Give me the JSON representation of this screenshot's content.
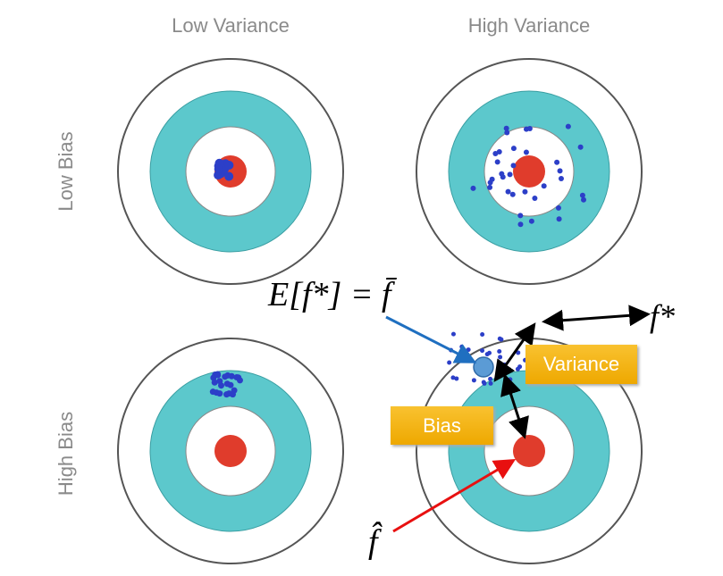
{
  "columns": [
    "Low Variance",
    "High Variance"
  ],
  "rows": [
    "Low Bias",
    "High Bias"
  ],
  "annotations": {
    "expected": "E[f*] = f̄",
    "f_star": "f*",
    "f_hat": "f̂",
    "variance": "Variance",
    "bias": "Bias"
  }
}
